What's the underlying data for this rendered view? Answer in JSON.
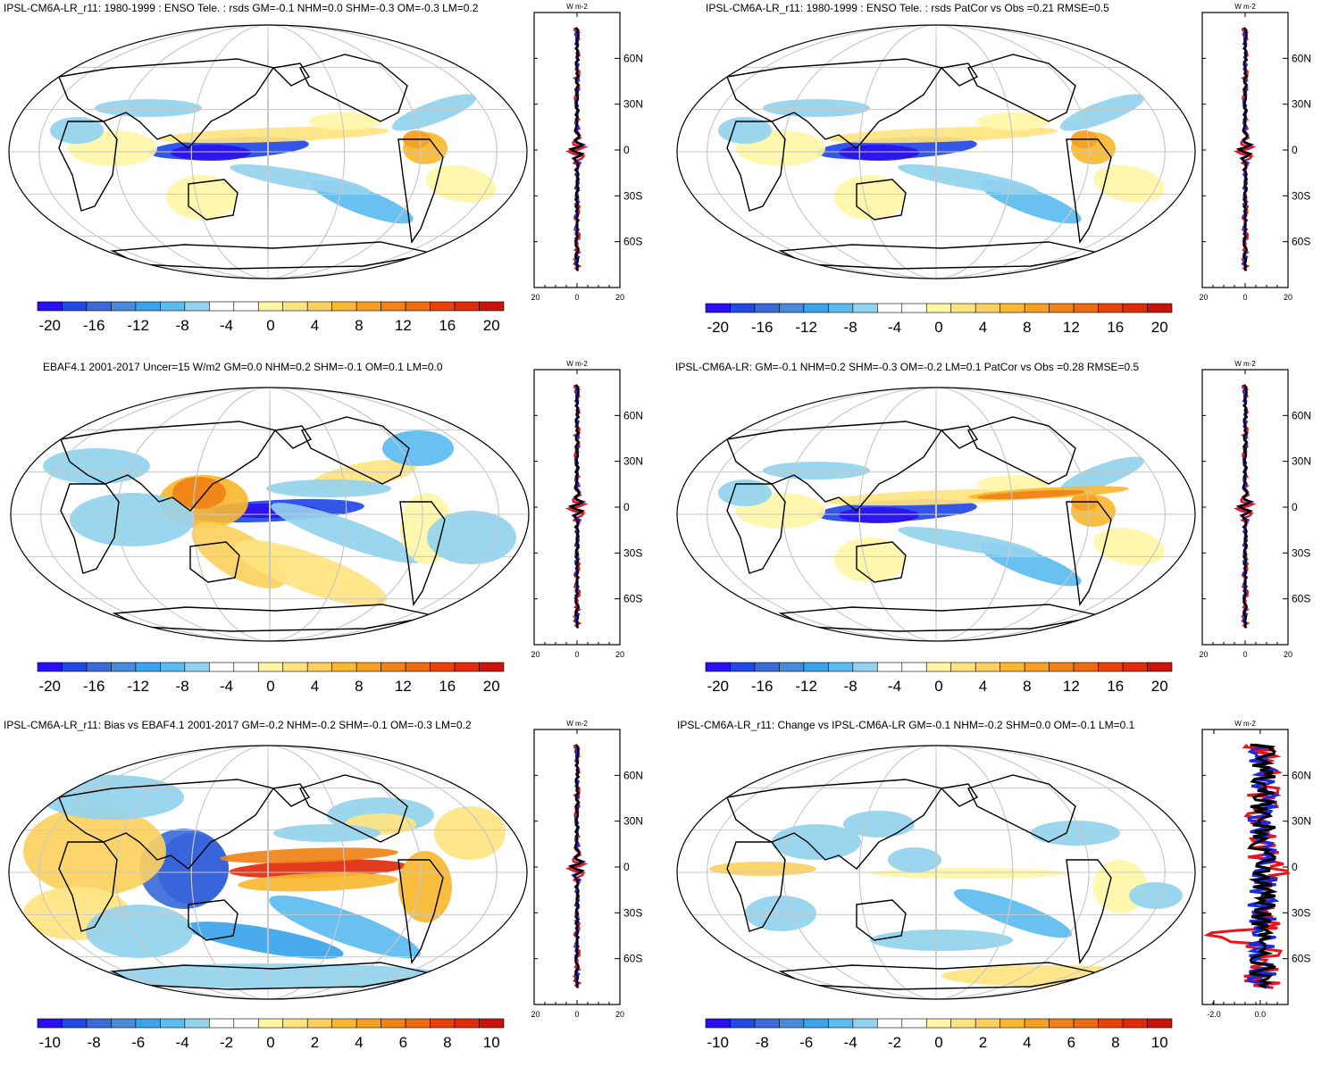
{
  "chart_data": [
    {
      "type": "map+profile",
      "title": "IPSL-CM6A-LR_r11: 1980-1999 : ENSO Tele. : rsds GM=-0.1 NHM=0.0 SHM=-0.3 OM=-0.3 LM=0.2",
      "colorbar_ticks": [
        "-20",
        "-16",
        "-12",
        "-8",
        "-4",
        "0",
        "4",
        "8",
        "12",
        "16",
        "20"
      ],
      "profile": {
        "unit_label": "W m-2",
        "ylabels": [
          "60N",
          "30N",
          "0",
          "30S",
          "60S"
        ],
        "xticks": [
          "-20",
          "0",
          "20"
        ],
        "xlim": [
          -20,
          20
        ]
      }
    },
    {
      "type": "map+profile",
      "title": "IPSL-CM6A-LR_r11: 1980-1999 : ENSO Tele. : rsds PatCor vs Obs =0.21 RMSE=0.5",
      "colorbar_ticks": [
        "-20",
        "-16",
        "-12",
        "-8",
        "-4",
        "0",
        "4",
        "8",
        "12",
        "16",
        "20"
      ],
      "profile": {
        "unit_label": "W m-2",
        "ylabels": [
          "60N",
          "30N",
          "0",
          "30S",
          "60S"
        ],
        "xticks": [
          "-20",
          "0",
          "20"
        ],
        "xlim": [
          -20,
          20
        ]
      }
    },
    {
      "type": "map+profile",
      "title": "EBAF4.1 2001-2017 Uncer=15 W/m2 GM=0.0 NHM=0.2 SHM=-0.1 OM=0.1 LM=0.0",
      "colorbar_ticks": [
        "-20",
        "-16",
        "-12",
        "-8",
        "-4",
        "0",
        "4",
        "8",
        "12",
        "16",
        "20"
      ],
      "profile": {
        "unit_label": "W m-2",
        "ylabels": [
          "60N",
          "30N",
          "0",
          "30S",
          "60S"
        ],
        "xticks": [
          "-20",
          "0",
          "20"
        ],
        "xlim": [
          -20,
          20
        ]
      }
    },
    {
      "type": "map+profile",
      "title": "IPSL-CM6A-LR: GM=-0.1 NHM=0.2 SHM=-0.3 OM=-0.2 LM=0.1 PatCor vs Obs =0.28 RMSE=0.5",
      "colorbar_ticks": [
        "-20",
        "-16",
        "-12",
        "-8",
        "-4",
        "0",
        "4",
        "8",
        "12",
        "16",
        "20"
      ],
      "profile": {
        "unit_label": "W m-2",
        "ylabels": [
          "60N",
          "30N",
          "0",
          "30S",
          "60S"
        ],
        "xticks": [
          "-20",
          "0",
          "20"
        ],
        "xlim": [
          -20,
          20
        ]
      }
    },
    {
      "type": "map+profile",
      "title": "IPSL-CM6A-LR_r11: Bias vs EBAF4.1 2001-2017 GM=-0.2 NHM=-0.2 SHM=-0.1 OM=-0.3 LM=0.2",
      "colorbar_ticks": [
        "-10",
        "-8",
        "-6",
        "-4",
        "-2",
        "0",
        "2",
        "4",
        "6",
        "8",
        "10"
      ],
      "profile": {
        "unit_label": "W m-2",
        "ylabels": [
          "60N",
          "30N",
          "0",
          "30S",
          "60S"
        ],
        "xticks": [
          "-20",
          "0",
          "20"
        ],
        "xlim": [
          -20,
          20
        ]
      }
    },
    {
      "type": "map+profile",
      "title": "IPSL-CM6A-LR_r11: Change vs IPSL-CM6A-LR GM=-0.1 NHM=-0.2 SHM=0.0 OM=-0.1 LM=0.1",
      "colorbar_ticks": [
        "-10",
        "-8",
        "-6",
        "-4",
        "-2",
        "0",
        "2",
        "4",
        "6",
        "8",
        "10"
      ],
      "profile": {
        "unit_label": "W m-2",
        "ylabels": [
          "60N",
          "30N",
          "0",
          "30S",
          "60S"
        ],
        "xticks": [
          "-2.0",
          "0.0"
        ],
        "xlim": [
          -2.5,
          1.2
        ]
      }
    }
  ],
  "colors": {
    "scale": [
      "#2a0ff0",
      "#2248e6",
      "#3a6bd8",
      "#4a8ad8",
      "#3aa3ea",
      "#5cbcf0",
      "#93d2ee",
      "#ffffff",
      "#ffffff",
      "#fff6a6",
      "#ffe480",
      "#fcd060",
      "#f8b830",
      "#f5a020",
      "#f08218",
      "#ec6a10",
      "#e8420a",
      "#e02a0a",
      "#c8140a"
    ],
    "line_red": "#e8141a",
    "line_blue": "#1a2ae0",
    "line_black": "#000000"
  }
}
